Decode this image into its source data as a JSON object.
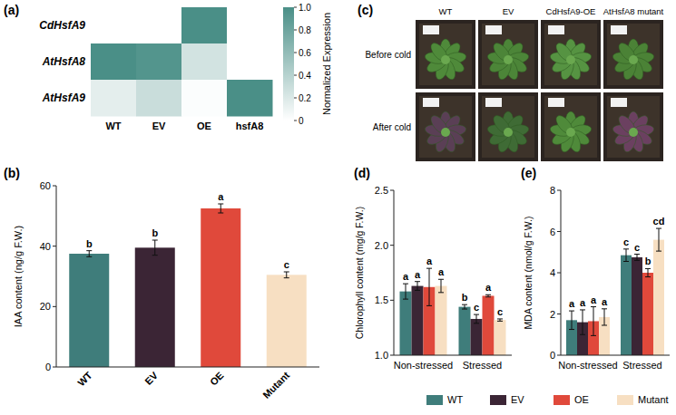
{
  "chart_data": [
    {
      "type": "heatmap",
      "label": "(a)",
      "categories": [
        "WT",
        "EV",
        "OE",
        "hsfA8"
      ],
      "y_categories": [
        "CdHsfA9",
        "AtHsfA8",
        "AtHsfA9"
      ],
      "cells": [
        [
          0,
          0,
          1,
          0
        ],
        [
          1,
          0.95,
          0.25,
          0
        ],
        [
          0.15,
          0.3,
          0.02,
          1
        ]
      ],
      "color": "#4a8f87",
      "colorbar_label": "Normalized Expression",
      "colorbar_range": [
        0,
        1
      ],
      "colorbar_ticks": [
        0,
        0.2,
        0.4,
        0.6,
        0.8,
        {
          "value": 1,
          "label": "1.0"
        }
      ]
    },
    {
      "type": "bar",
      "label": "(b)",
      "y_label": "IAA content (ng/g F.W.)",
      "categories": [
        "WT",
        "EV",
        "OE",
        "Mutant"
      ],
      "values": [
        37.5,
        39.5,
        52.5,
        30.5
      ],
      "errors": [
        1,
        2.5,
        1.5,
        1
      ],
      "letters": [
        "b",
        "b",
        "a",
        "c"
      ],
      "colors": [
        "#3f7d7b",
        "#3b2535",
        "#e0493b",
        "#f7dfc2"
      ],
      "ylim": [
        0,
        60
      ],
      "yticks": [
        0,
        20,
        40,
        60
      ]
    },
    {
      "type": "bar",
      "label": "(d)",
      "y_label": "Chlorophyll content (mg/g F.W.)",
      "categories": [
        "Non-stressed",
        "Stressed"
      ],
      "legend": "none",
      "series": [
        {
          "name": "WT",
          "color": "#3f7d7b",
          "values": [
            1.58,
            1.44
          ],
          "errors": [
            0.07,
            0.02
          ],
          "letters": [
            "a",
            "b"
          ]
        },
        {
          "name": "EV",
          "color": "#3b2535",
          "values": [
            1.63,
            1.33
          ],
          "errors": [
            0.04,
            0.04
          ],
          "letters": [
            "a",
            "c"
          ]
        },
        {
          "name": "OE",
          "color": "#e0493b",
          "values": [
            1.62,
            1.54
          ],
          "errors": [
            0.17,
            0.01
          ],
          "letters": [
            "a",
            "a"
          ]
        },
        {
          "name": "Mutant",
          "color": "#f7dfc2",
          "values": [
            1.63,
            1.32
          ],
          "errors": [
            0.06,
            0.01
          ],
          "letters": [
            "a",
            "c"
          ]
        }
      ],
      "ylim": [
        1,
        2.5
      ],
      "yticks": [
        {
          "value": 1,
          "label": "1.0"
        },
        1.5,
        {
          "value": 2,
          "label": "2.0"
        },
        2.5
      ]
    },
    {
      "type": "bar",
      "label": "(e)",
      "y_label": "MDA content (nmol/g F.W.)",
      "categories": [
        "Non-stressed",
        "Stressed"
      ],
      "legend": "bottom",
      "series": [
        {
          "name": "WT",
          "color": "#3f7d7b",
          "values": [
            1.7,
            4.85
          ],
          "errors": [
            0.45,
            0.3
          ],
          "letters": [
            "a",
            "c"
          ]
        },
        {
          "name": "EV",
          "color": "#3b2535",
          "values": [
            1.6,
            4.75
          ],
          "errors": [
            0.6,
            0.15
          ],
          "letters": [
            "a",
            "c"
          ]
        },
        {
          "name": "OE",
          "color": "#e0493b",
          "values": [
            1.65,
            4.0
          ],
          "errors": [
            0.7,
            0.2
          ],
          "letters": [
            "a",
            "b"
          ]
        },
        {
          "name": "Mutant",
          "color": "#f7dfc2",
          "values": [
            1.85,
            5.6
          ],
          "errors": [
            0.4,
            0.55
          ],
          "letters": [
            "a",
            "cd"
          ]
        }
      ],
      "ylim": [
        0,
        8
      ],
      "yticks": [
        0,
        2,
        4,
        6,
        8
      ]
    }
  ],
  "photo_panel": {
    "label": "(c)",
    "columns": [
      "WT",
      "EV",
      "CdHsfA9-OE",
      "AtHsfA8 mutant"
    ],
    "rows": [
      "Before cold",
      "After cold"
    ]
  }
}
